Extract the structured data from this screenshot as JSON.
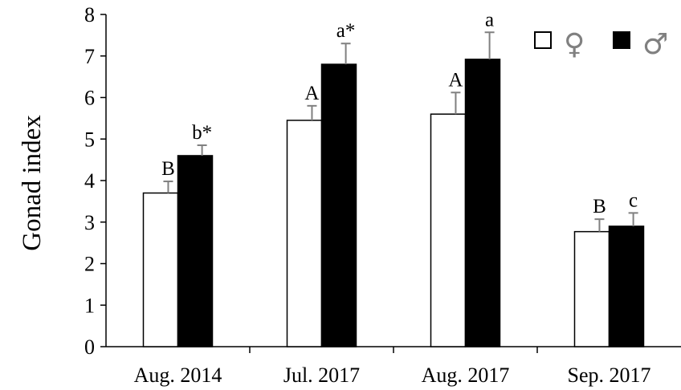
{
  "chart_data": {
    "type": "bar",
    "title": "",
    "xlabel": "",
    "ylabel": "Gonad index",
    "ylim": [
      0,
      8
    ],
    "yticks": [
      0,
      1,
      2,
      3,
      4,
      5,
      6,
      7,
      8
    ],
    "grid": false,
    "legend_position": "top-right",
    "categories": [
      "Aug. 2014",
      "Jul. 2017",
      "Aug. 2017",
      "Sep. 2017"
    ],
    "series": [
      {
        "name": "♀",
        "fill": "#ffffff",
        "values": [
          3.7,
          5.45,
          5.6,
          2.77
        ],
        "errors": [
          0.28,
          0.35,
          0.52,
          0.3
        ],
        "labels": [
          "B",
          "A",
          "A",
          "B"
        ]
      },
      {
        "name": "♂",
        "fill": "#000000",
        "values": [
          4.6,
          6.8,
          6.92,
          2.9
        ],
        "errors": [
          0.25,
          0.5,
          0.65,
          0.32
        ],
        "labels": [
          "b*",
          "a*",
          "a",
          "c"
        ]
      }
    ],
    "colors": {
      "axis": "#000000",
      "error_bar": "#808080",
      "legend_symbol": "#808080"
    }
  }
}
